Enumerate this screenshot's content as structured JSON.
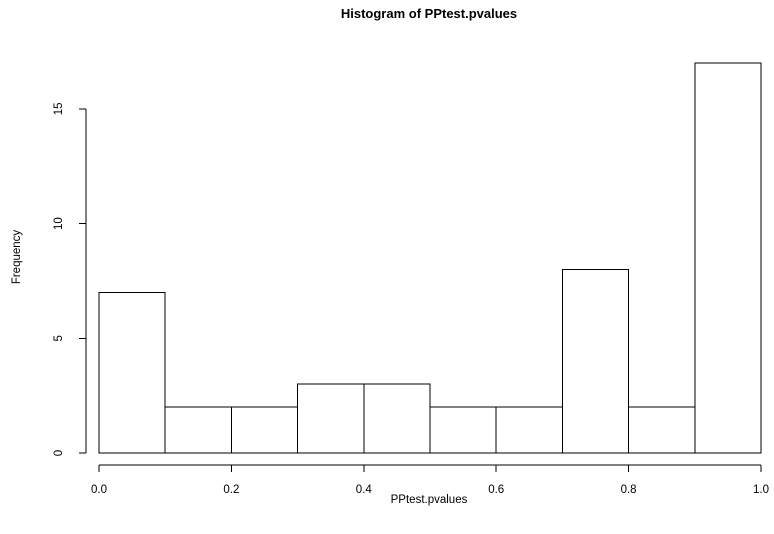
{
  "chart_data": {
    "type": "bar",
    "title": "Histogram of PPtest.pvalues",
    "xlabel": "PPtest.pvalues",
    "ylabel": "Frequency",
    "bins": [
      {
        "start": 0.0,
        "end": 0.1,
        "count": 7
      },
      {
        "start": 0.1,
        "end": 0.2,
        "count": 2
      },
      {
        "start": 0.2,
        "end": 0.3,
        "count": 2
      },
      {
        "start": 0.3,
        "end": 0.4,
        "count": 3
      },
      {
        "start": 0.4,
        "end": 0.5,
        "count": 3
      },
      {
        "start": 0.5,
        "end": 0.6,
        "count": 2
      },
      {
        "start": 0.6,
        "end": 0.7,
        "count": 2
      },
      {
        "start": 0.7,
        "end": 0.8,
        "count": 8
      },
      {
        "start": 0.8,
        "end": 0.9,
        "count": 2
      },
      {
        "start": 0.9,
        "end": 1.0,
        "count": 17
      }
    ],
    "xlim": [
      0,
      1
    ],
    "ylim": [
      0,
      17
    ],
    "x_ticks": [
      "0.0",
      "0.2",
      "0.4",
      "0.6",
      "0.8",
      "1.0"
    ],
    "y_ticks": [
      "0",
      "5",
      "10",
      "15"
    ],
    "grid": false,
    "bar_fill": "#ffffff",
    "bar_stroke": "#000000"
  }
}
